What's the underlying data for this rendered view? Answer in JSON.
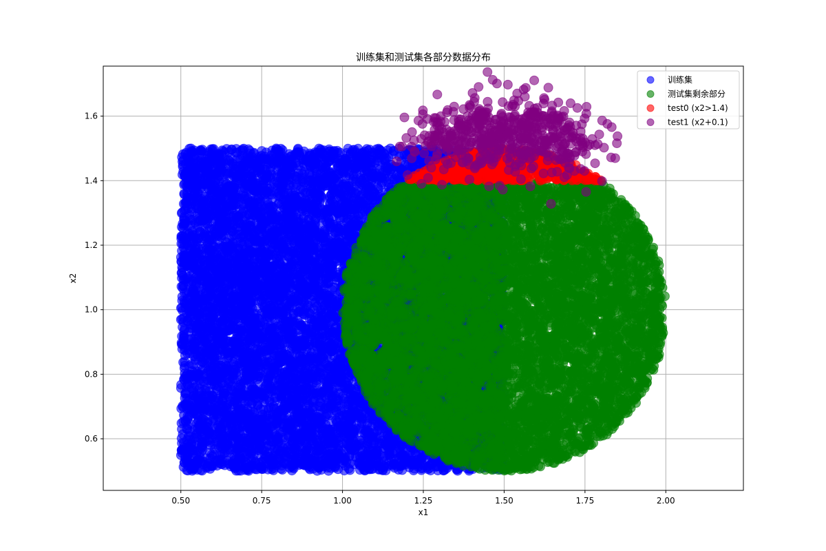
{
  "chart_data": {
    "type": "scatter",
    "title": "训练集和测试集各部分数据分布",
    "xlabel": "x1",
    "ylabel": "x2",
    "xlim": [
      0.26,
      2.24
    ],
    "ylim": [
      0.44,
      1.755
    ],
    "xticks": [
      "0.50",
      "0.75",
      "1.00",
      "1.25",
      "1.50",
      "1.75",
      "2.00"
    ],
    "yticks": [
      "0.6",
      "0.8",
      "1.0",
      "1.2",
      "1.4",
      "1.6"
    ],
    "grid": true,
    "legend_position": "top-right",
    "marker_alpha": 0.6,
    "series": [
      {
        "name": "训练集",
        "color": "#0000ff",
        "region": {
          "shape": "rectangle",
          "x1": [
            0.5,
            1.5
          ],
          "x2": [
            0.5,
            1.5
          ]
        },
        "approx_points": 10000
      },
      {
        "name": "测试集剩余部分",
        "color": "#008000",
        "region": {
          "shape": "circle",
          "center": [
            1.5,
            1.0
          ],
          "radius": 0.5,
          "x2_max": 1.4
        },
        "approx_points": 7600
      },
      {
        "name": "test0 (x2>1.4)",
        "color": "#ff0000",
        "region": {
          "shape": "circle-cap",
          "center": [
            1.5,
            1.0
          ],
          "radius": 0.5,
          "x2_min": 1.4
        },
        "approx_points": 600
      },
      {
        "name": "test1 (x2+0.1)",
        "color": "#800080",
        "region": {
          "shape": "circle-cap-shifted",
          "center": [
            1.5,
            1.0
          ],
          "radius": 0.5,
          "x2_min": 1.4,
          "shift": 0.1,
          "noise": 0.05
        },
        "approx_points": 600
      }
    ]
  }
}
